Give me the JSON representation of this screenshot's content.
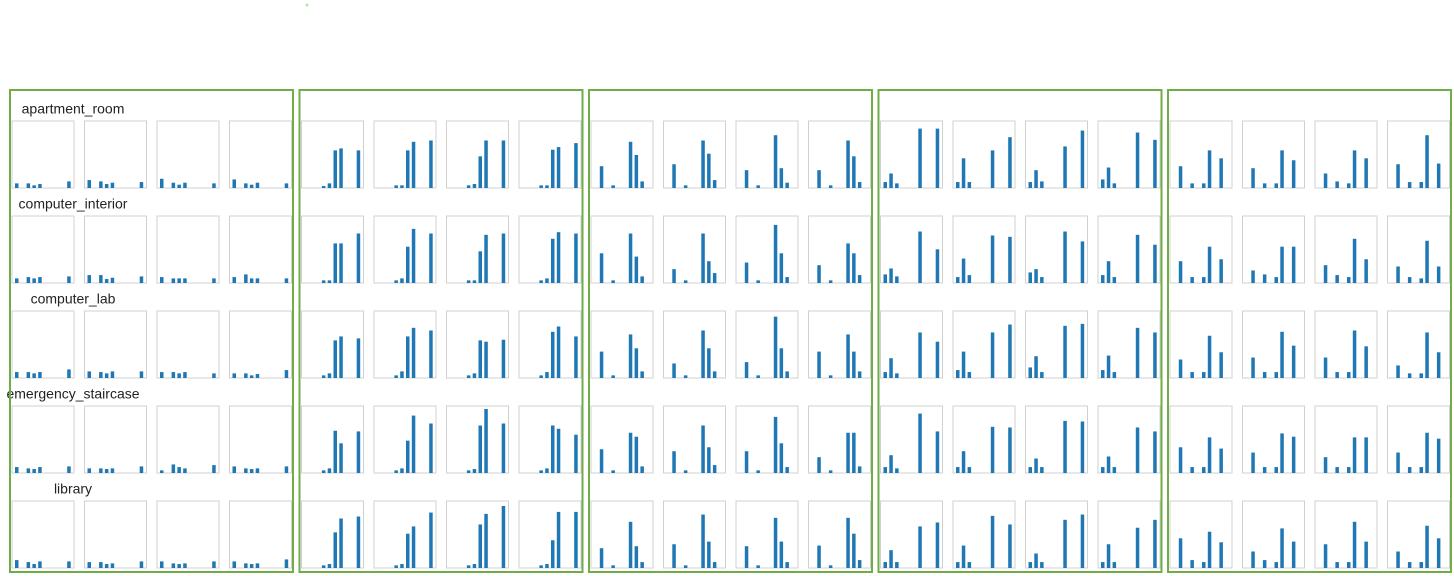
{
  "chart_data": {
    "type": "bar",
    "color": "#1f77b4",
    "rows": [
      {
        "label": "apartment_room",
        "charts": [
          [
            7,
            0,
            7,
            4,
            6,
            0,
            0,
            0,
            0,
            10
          ],
          [
            12,
            0,
            10,
            6,
            8,
            0,
            0,
            0,
            0,
            9
          ],
          [
            14,
            0,
            8,
            5,
            8,
            0,
            0,
            0,
            0,
            7
          ],
          [
            13,
            0,
            7,
            5,
            8,
            0,
            0,
            0,
            0,
            7
          ],
          [
            0,
            0,
            0,
            3,
            7,
            57,
            60,
            0,
            0,
            57
          ],
          [
            0,
            0,
            0,
            4,
            4,
            57,
            70,
            0,
            0,
            72
          ],
          [
            0,
            0,
            0,
            4,
            6,
            48,
            72,
            0,
            0,
            72
          ],
          [
            0,
            0,
            0,
            4,
            4,
            58,
            62,
            0,
            0,
            68
          ],
          [
            0,
            33,
            0,
            4,
            0,
            0,
            70,
            50,
            10,
            0
          ],
          [
            0,
            36,
            0,
            4,
            0,
            0,
            72,
            52,
            12,
            0
          ],
          [
            0,
            27,
            0,
            4,
            0,
            0,
            80,
            30,
            8,
            0
          ],
          [
            0,
            27,
            0,
            4,
            0,
            0,
            72,
            48,
            9,
            0
          ],
          [
            9,
            22,
            7,
            0,
            0,
            0,
            90,
            0,
            0,
            90
          ],
          [
            9,
            45,
            9,
            0,
            0,
            0,
            57,
            0,
            0,
            77
          ],
          [
            9,
            27,
            10,
            0,
            0,
            0,
            63,
            0,
            0,
            87
          ],
          [
            13,
            31,
            7,
            0,
            0,
            0,
            84,
            0,
            0,
            73
          ],
          [
            0,
            33,
            0,
            7,
            0,
            7,
            57,
            0,
            45,
            0
          ],
          [
            0,
            30,
            0,
            7,
            0,
            7,
            57,
            0,
            42,
            0
          ],
          [
            0,
            22,
            0,
            10,
            0,
            7,
            57,
            0,
            45,
            0
          ],
          [
            0,
            36,
            0,
            9,
            0,
            9,
            80,
            0,
            37,
            0
          ]
        ]
      },
      {
        "label": "computer_interior",
        "charts": [
          [
            7,
            0,
            9,
            7,
            9,
            0,
            0,
            0,
            0,
            10
          ],
          [
            12,
            0,
            12,
            6,
            8,
            0,
            0,
            0,
            0,
            10
          ],
          [
            9,
            0,
            7,
            7,
            7,
            0,
            0,
            0,
            0,
            7
          ],
          [
            9,
            0,
            13,
            7,
            7,
            0,
            0,
            0,
            0,
            7
          ],
          [
            0,
            0,
            0,
            4,
            4,
            60,
            60,
            0,
            0,
            75
          ],
          [
            0,
            0,
            0,
            4,
            7,
            55,
            82,
            0,
            0,
            75
          ],
          [
            0,
            0,
            0,
            4,
            4,
            48,
            73,
            0,
            0,
            75
          ],
          [
            0,
            0,
            0,
            4,
            7,
            67,
            77,
            0,
            0,
            75
          ],
          [
            0,
            45,
            0,
            4,
            0,
            0,
            75,
            40,
            10,
            0
          ],
          [
            0,
            21,
            0,
            4,
            0,
            0,
            75,
            33,
            15,
            0
          ],
          [
            0,
            31,
            0,
            4,
            0,
            0,
            88,
            45,
            9,
            0
          ],
          [
            0,
            27,
            0,
            4,
            0,
            0,
            60,
            45,
            12,
            0
          ],
          [
            13,
            22,
            10,
            0,
            0,
            0,
            78,
            0,
            0,
            51
          ],
          [
            9,
            37,
            12,
            0,
            0,
            0,
            72,
            0,
            0,
            70
          ],
          [
            16,
            21,
            9,
            0,
            0,
            0,
            78,
            0,
            0,
            63
          ],
          [
            12,
            33,
            9,
            0,
            0,
            0,
            73,
            0,
            0,
            58
          ],
          [
            0,
            33,
            0,
            9,
            0,
            9,
            55,
            0,
            36,
            0
          ],
          [
            0,
            19,
            0,
            13,
            0,
            9,
            55,
            0,
            55,
            0
          ],
          [
            0,
            27,
            0,
            12,
            0,
            9,
            67,
            0,
            36,
            0
          ],
          [
            0,
            25,
            0,
            9,
            0,
            7,
            64,
            0,
            25,
            0
          ]
        ]
      },
      {
        "label": "computer_lab",
        "charts": [
          [
            9,
            0,
            9,
            7,
            9,
            0,
            0,
            0,
            0,
            13
          ],
          [
            10,
            0,
            9,
            7,
            10,
            0,
            0,
            0,
            0,
            10
          ],
          [
            9,
            0,
            9,
            7,
            9,
            0,
            0,
            0,
            0,
            7
          ],
          [
            7,
            0,
            7,
            4,
            6,
            0,
            0,
            0,
            0,
            12
          ],
          [
            0,
            0,
            0,
            4,
            7,
            57,
            63,
            0,
            0,
            60
          ],
          [
            0,
            0,
            0,
            4,
            10,
            63,
            76,
            0,
            0,
            72
          ],
          [
            0,
            0,
            0,
            4,
            7,
            57,
            55,
            0,
            0,
            58
          ],
          [
            0,
            0,
            0,
            4,
            9,
            70,
            78,
            0,
            0,
            63
          ],
          [
            0,
            40,
            0,
            4,
            0,
            0,
            66,
            45,
            10,
            0
          ],
          [
            0,
            22,
            0,
            4,
            0,
            0,
            72,
            45,
            10,
            0
          ],
          [
            0,
            24,
            0,
            4,
            0,
            0,
            93,
            45,
            10,
            0
          ],
          [
            0,
            40,
            0,
            4,
            0,
            0,
            66,
            40,
            10,
            0
          ],
          [
            9,
            30,
            7,
            0,
            0,
            0,
            69,
            0,
            0,
            55
          ],
          [
            12,
            40,
            9,
            0,
            0,
            0,
            69,
            0,
            0,
            81
          ],
          [
            16,
            33,
            9,
            0,
            0,
            0,
            79,
            0,
            0,
            82
          ],
          [
            12,
            34,
            9,
            0,
            0,
            0,
            76,
            0,
            0,
            69
          ],
          [
            0,
            28,
            0,
            9,
            0,
            9,
            64,
            0,
            39,
            0
          ],
          [
            0,
            31,
            0,
            9,
            0,
            9,
            70,
            0,
            49,
            0
          ],
          [
            0,
            31,
            0,
            9,
            0,
            9,
            72,
            0,
            48,
            0
          ],
          [
            0,
            19,
            0,
            7,
            0,
            7,
            69,
            0,
            39,
            0
          ]
        ]
      },
      {
        "label": "emergency_staircase",
        "charts": [
          [
            9,
            0,
            7,
            6,
            9,
            0,
            0,
            0,
            0,
            10
          ],
          [
            7,
            0,
            7,
            6,
            7,
            0,
            0,
            0,
            0,
            10
          ],
          [
            4,
            0,
            13,
            9,
            7,
            0,
            0,
            0,
            0,
            12
          ],
          [
            10,
            0,
            7,
            6,
            7,
            0,
            0,
            0,
            0,
            10
          ],
          [
            0,
            0,
            0,
            4,
            7,
            64,
            45,
            0,
            0,
            63
          ],
          [
            0,
            0,
            0,
            4,
            7,
            49,
            87,
            0,
            0,
            75
          ],
          [
            0,
            0,
            0,
            4,
            6,
            72,
            97,
            0,
            0,
            75
          ],
          [
            0,
            0,
            0,
            4,
            7,
            72,
            67,
            0,
            0,
            58
          ],
          [
            0,
            36,
            0,
            4,
            0,
            0,
            61,
            55,
            10,
            0
          ],
          [
            0,
            33,
            0,
            4,
            0,
            0,
            72,
            39,
            12,
            0
          ],
          [
            0,
            33,
            0,
            4,
            0,
            0,
            85,
            45,
            9,
            0
          ],
          [
            0,
            24,
            0,
            4,
            0,
            0,
            61,
            61,
            10,
            0
          ],
          [
            9,
            27,
            7,
            0,
            0,
            0,
            90,
            0,
            0,
            63
          ],
          [
            9,
            33,
            9,
            0,
            0,
            0,
            70,
            0,
            0,
            69
          ],
          [
            9,
            22,
            9,
            0,
            0,
            0,
            79,
            0,
            0,
            78
          ],
          [
            9,
            25,
            9,
            0,
            0,
            0,
            69,
            0,
            0,
            63
          ],
          [
            0,
            39,
            0,
            9,
            0,
            9,
            54,
            0,
            37,
            0
          ],
          [
            0,
            31,
            0,
            9,
            0,
            9,
            60,
            0,
            55,
            0
          ],
          [
            0,
            24,
            0,
            9,
            0,
            9,
            54,
            0,
            54,
            0
          ],
          [
            0,
            31,
            0,
            9,
            0,
            9,
            61,
            0,
            52,
            0
          ]
        ]
      },
      {
        "label": "library",
        "charts": [
          [
            12,
            0,
            9,
            6,
            10,
            0,
            0,
            0,
            0,
            10
          ],
          [
            9,
            0,
            9,
            6,
            7,
            0,
            0,
            0,
            0,
            10
          ],
          [
            10,
            0,
            7,
            6,
            7,
            0,
            0,
            0,
            0,
            10
          ],
          [
            10,
            0,
            7,
            6,
            7,
            0,
            0,
            0,
            0,
            13
          ],
          [
            0,
            0,
            0,
            4,
            6,
            54,
            75,
            0,
            0,
            78
          ],
          [
            0,
            0,
            0,
            4,
            6,
            52,
            63,
            0,
            0,
            84
          ],
          [
            0,
            0,
            0,
            4,
            6,
            66,
            82,
            0,
            0,
            94
          ],
          [
            0,
            0,
            0,
            4,
            6,
            42,
            85,
            0,
            0,
            85
          ],
          [
            0,
            30,
            0,
            4,
            0,
            0,
            70,
            33,
            9,
            0
          ],
          [
            0,
            36,
            0,
            4,
            0,
            0,
            81,
            40,
            9,
            0
          ],
          [
            0,
            33,
            0,
            4,
            0,
            0,
            76,
            40,
            9,
            0
          ],
          [
            0,
            34,
            0,
            4,
            0,
            0,
            76,
            52,
            12,
            0
          ],
          [
            9,
            27,
            9,
            0,
            0,
            0,
            63,
            0,
            0,
            69
          ],
          [
            9,
            34,
            9,
            0,
            0,
            0,
            79,
            0,
            0,
            66
          ],
          [
            9,
            22,
            9,
            0,
            0,
            0,
            73,
            0,
            0,
            81
          ],
          [
            9,
            36,
            9,
            0,
            0,
            0,
            61,
            0,
            0,
            73
          ],
          [
            0,
            45,
            0,
            12,
            0,
            9,
            55,
            0,
            39,
            0
          ],
          [
            0,
            25,
            0,
            12,
            0,
            9,
            60,
            0,
            40,
            0
          ],
          [
            0,
            36,
            0,
            9,
            0,
            9,
            70,
            0,
            40,
            0
          ],
          [
            0,
            25,
            0,
            9,
            0,
            9,
            64,
            0,
            45,
            0
          ]
        ]
      }
    ]
  }
}
